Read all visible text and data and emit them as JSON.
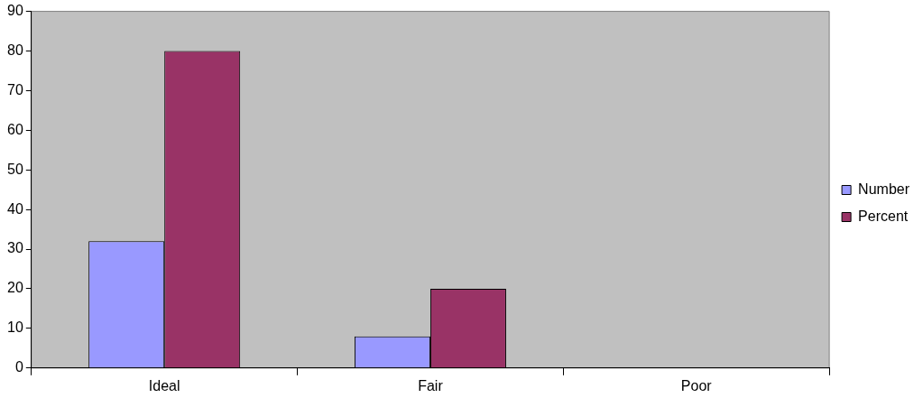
{
  "chart_data": {
    "type": "bar",
    "categories": [
      "Ideal",
      "Fair",
      "Poor"
    ],
    "series": [
      {
        "name": "Number",
        "color": "#9999ff",
        "values": [
          32,
          8,
          0
        ]
      },
      {
        "name": "Percent",
        "color": "#993366",
        "values": [
          80,
          20,
          0
        ]
      }
    ],
    "ylim": [
      0,
      90
    ],
    "yticks": [
      0,
      10,
      20,
      30,
      40,
      50,
      60,
      70,
      80,
      90
    ],
    "grid": false,
    "legend": "right"
  }
}
